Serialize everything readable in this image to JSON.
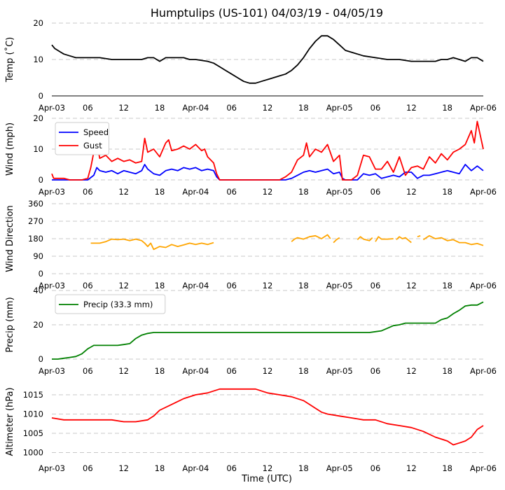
{
  "chart_data": {
    "title": "Humptulips (US-101) 04/03/19 - 04/05/19",
    "xlabel": "Time (UTC)",
    "x_range_hours": [
      0,
      72
    ],
    "x_ticks": [
      {
        "h": 0,
        "label": "Apr-03"
      },
      {
        "h": 6,
        "label": "06"
      },
      {
        "h": 12,
        "label": "12"
      },
      {
        "h": 18,
        "label": "18"
      },
      {
        "h": 24,
        "label": "Apr-04"
      },
      {
        "h": 30,
        "label": "06"
      },
      {
        "h": 36,
        "label": "12"
      },
      {
        "h": 42,
        "label": "18"
      },
      {
        "h": 48,
        "label": "Apr-05"
      },
      {
        "h": 54,
        "label": "06"
      },
      {
        "h": 60,
        "label": "12"
      },
      {
        "h": 66,
        "label": "18"
      },
      {
        "h": 72,
        "label": "Apr-06"
      }
    ],
    "panels": [
      {
        "id": "temp",
        "type": "line",
        "ylabel": "Temp ($^\\circ$C)",
        "ylabel_display": "Temp (˚C)",
        "ylim": [
          0,
          20
        ],
        "yticks": [
          0,
          10,
          20
        ],
        "grid": true,
        "show_axis_line": true,
        "series": [
          {
            "name": "Temp",
            "color": "#000000",
            "x": [
              0,
              0.5,
              1,
              1.5,
              2,
              3,
              4,
              6,
              8,
              10,
              11,
              12,
              14,
              15,
              16,
              17,
              18,
              19,
              20,
              21,
              22,
              23,
              24,
              26,
              27,
              28,
              29,
              30,
              31,
              32,
              33,
              34,
              35,
              36,
              37,
              38,
              39,
              40,
              41,
              42,
              43,
              44,
              45,
              46,
              47,
              48,
              49,
              50,
              51,
              52,
              54,
              56,
              58,
              60,
              62,
              64,
              65,
              66,
              67,
              68,
              69,
              70,
              71,
              72
            ],
            "y": [
              14,
              13,
              12.5,
              12,
              11.5,
              11,
              10.5,
              10.5,
              10.5,
              10,
              10,
              10,
              10,
              10,
              10.5,
              10.5,
              9.5,
              10.5,
              10.5,
              10.5,
              10.5,
              10,
              10,
              9.5,
              9,
              8,
              7,
              6,
              5,
              4,
              3.5,
              3.5,
              4,
              4.5,
              5,
              5.5,
              6,
              7,
              8.5,
              10.5,
              13,
              15,
              16.5,
              16.5,
              15.5,
              14,
              12.5,
              12,
              11.5,
              11,
              10.5,
              10,
              10,
              9.5,
              9.5,
              9.5,
              10,
              10,
              10.5,
              10,
              9.5,
              10.5,
              10.5,
              9.5
            ]
          }
        ]
      },
      {
        "id": "wind",
        "type": "line",
        "ylabel": "Wind (mph)",
        "ylim": [
          0,
          20
        ],
        "yticks": [
          0,
          10,
          20
        ],
        "grid": true,
        "legend": "top-left",
        "series": [
          {
            "name": "Speed",
            "color": "#0000ff",
            "x": [
              0,
              1,
              2,
              3,
              4,
              5,
              6,
              7,
              7.5,
              8,
              9,
              10,
              11,
              12,
              13,
              14,
              15,
              15.5,
              16,
              17,
              18,
              19,
              20,
              21,
              22,
              23,
              24,
              25,
              26,
              27,
              27.5,
              28,
              30,
              32,
              34,
              36,
              38,
              39,
              40,
              41,
              42,
              43,
              44,
              45,
              46,
              47,
              48,
              48.5,
              49,
              50,
              51,
              52,
              53,
              54,
              55,
              56,
              57,
              58,
              59,
              60,
              61,
              62,
              63,
              64,
              65,
              66,
              67,
              68,
              69,
              70,
              71,
              72
            ],
            "y": [
              0,
              0,
              0,
              0,
              0,
              0,
              0,
              1.5,
              4,
              3,
              2.5,
              3,
              2,
              3,
              2.5,
              2,
              3,
              5,
              3.5,
              2,
              1.5,
              3,
              3.5,
              3,
              4,
              3.5,
              4,
              3,
              3.5,
              3,
              1,
              0,
              0,
              0,
              0,
              0,
              0,
              0,
              0.5,
              1.5,
              2.5,
              3,
              2.5,
              3,
              3.5,
              2,
              2.5,
              0.5,
              0,
              0,
              0,
              2,
              1.5,
              2,
              0.5,
              1,
              1.5,
              1,
              2.5,
              2.5,
              0.5,
              1.5,
              1.5,
              2,
              2.5,
              3,
              2.5,
              2,
              5,
              3,
              4.5,
              3
            ]
          },
          {
            "name": "Gust",
            "color": "#ff0000",
            "x": [
              0,
              0.3,
              1,
              2,
              3,
              4,
              5,
              6,
              6.5,
              7,
              7.5,
              8,
              9,
              10,
              11,
              12,
              13,
              14,
              15,
              15.5,
              16,
              17,
              18,
              19,
              19.5,
              20,
              21,
              22,
              23,
              24,
              25,
              25.5,
              26,
              27,
              27.5,
              28,
              30,
              32,
              34,
              36,
              38,
              39,
              40,
              41,
              42,
              42.5,
              43,
              44,
              45,
              46,
              47,
              48,
              48.5,
              49,
              50,
              51,
              52,
              53,
              54,
              55,
              56,
              57,
              58,
              59,
              60,
              61,
              62,
              63,
              64,
              65,
              66,
              67,
              68,
              69,
              70,
              70.5,
              71,
              72
            ],
            "y": [
              2,
              0.5,
              0.5,
              0.5,
              0,
              0,
              0,
              0.5,
              4,
              9,
              12,
              7,
              8,
              6,
              7,
              6,
              6.5,
              5.5,
              6,
              13.5,
              9,
              10,
              7.5,
              12,
              13,
              9.5,
              10,
              11,
              10,
              11.5,
              9.5,
              10,
              7.5,
              5.5,
              2,
              0,
              0,
              0,
              0,
              0,
              0,
              1,
              2.5,
              6.5,
              8,
              12,
              7.5,
              10,
              9,
              11.5,
              6,
              8,
              0,
              0,
              0,
              1.5,
              8,
              7.5,
              3.5,
              3.5,
              6,
              2.5,
              7.5,
              1.5,
              4,
              4.5,
              3.5,
              7.5,
              5.5,
              8.5,
              6.5,
              9,
              10,
              11.5,
              16,
              12,
              19,
              10
            ]
          }
        ]
      },
      {
        "id": "wdir",
        "type": "line",
        "ylabel": "Wind Direction",
        "ylim": [
          0,
          360
        ],
        "yticks": [
          0,
          90,
          180,
          270,
          360
        ],
        "grid": true,
        "series": [
          {
            "name": "Direction",
            "color": "#ffa500",
            "segments": [
              {
                "x": [
                  6.5,
                  8,
                  9,
                  10,
                  11,
                  12,
                  13,
                  14,
                  15,
                  15.5,
                  16,
                  16.5,
                  17,
                  18,
                  19,
                  20,
                  21,
                  22,
                  23,
                  24,
                  25,
                  26,
                  27
                ],
                "y": [
                  157,
                  157,
                  165,
                  178,
                  175,
                  178,
                  170,
                  178,
                  170,
                  157,
                  140,
                  157,
                  125,
                  140,
                  135,
                  150,
                  140,
                  148,
                  157,
                  150,
                  157,
                  150,
                  160
                ]
              },
              {
                "x": [
                  40,
                  40.5,
                  41,
                  42,
                  43,
                  44,
                  45,
                  46,
                  46.5
                ],
                "y": [
                  165,
                  178,
                  185,
                  178,
                  190,
                  195,
                  180,
                  200,
                  180
                ]
              },
              {
                "x": [
                  47,
                  47.5,
                  48
                ],
                "y": [
                  160,
                  175,
                  185
                ]
              },
              {
                "x": [
                  51,
                  51.5,
                  52,
                  53,
                  53.5
                ],
                "y": [
                  175,
                  190,
                  178,
                  170,
                  185
                ]
              },
              {
                "x": [
                  54,
                  54.5,
                  55,
                  56,
                  57
                ],
                "y": [
                  165,
                  190,
                  178,
                  178,
                  180
                ]
              },
              {
                "x": [
                  57.5,
                  58,
                  58.5,
                  59,
                  60
                ],
                "y": [
                  175,
                  190,
                  180,
                  185,
                  160
                ]
              },
              {
                "x": [
                  61,
                  61.5
                ],
                "y": [
                  190,
                  195
                ]
              },
              {
                "x": [
                  62,
                  63,
                  64,
                  65,
                  66,
                  67,
                  68,
                  69,
                  70,
                  71,
                  72
                ],
                "y": [
                  175,
                  195,
                  180,
                  185,
                  170,
                  175,
                  160,
                  160,
                  150,
                  155,
                  145
                ]
              }
            ]
          }
        ]
      },
      {
        "id": "precip",
        "type": "line",
        "ylabel": "Precip (mm)",
        "ylim": [
          0,
          40
        ],
        "yticks": [
          0,
          20,
          40
        ],
        "grid": true,
        "legend": "top-left",
        "series": [
          {
            "name": "Precip (33.3 mm)",
            "color": "#008000",
            "x": [
              0,
              1,
              2,
              3,
              4,
              5,
              6,
              6.5,
              7,
              8,
              9,
              10,
              11,
              12,
              13,
              14,
              15,
              16,
              17,
              18,
              20,
              24,
              30,
              36,
              42,
              48,
              52,
              53,
              54,
              55,
              56,
              57,
              58,
              59,
              60,
              62,
              64,
              65,
              66,
              67,
              68,
              69,
              70,
              71,
              72
            ],
            "y": [
              0,
              0,
              0.5,
              1,
              1.5,
              3,
              6,
              7,
              8,
              8,
              8,
              8,
              8,
              8.5,
              9,
              12,
              14,
              15,
              15.5,
              15.5,
              15.5,
              15.5,
              15.5,
              15.5,
              15.5,
              15.5,
              15.5,
              15.5,
              16,
              16.5,
              18,
              19.5,
              20,
              21,
              21,
              21,
              21,
              23,
              24,
              26.5,
              28.5,
              31,
              31.5,
              31.5,
              33.3
            ]
          }
        ]
      },
      {
        "id": "altimeter",
        "type": "line",
        "ylabel": "Altimeter (hPa)",
        "ylim": [
          999,
          1017
        ],
        "yticks": [
          1000,
          1005,
          1010,
          1015
        ],
        "grid": true,
        "series": [
          {
            "name": "Altimeter",
            "color": "#ff0000",
            "x": [
              0,
              2,
              4,
              6,
              8,
              10,
              12,
              14,
              16,
              17,
              18,
              20,
              22,
              24,
              26,
              28,
              30,
              32,
              34,
              36,
              38,
              40,
              42,
              43,
              44,
              45,
              46,
              48,
              50,
              52,
              54,
              56,
              58,
              60,
              62,
              64,
              66,
              67,
              68,
              69,
              70,
              71,
              72
            ],
            "y": [
              1009,
              1008.5,
              1008.5,
              1008.5,
              1008.5,
              1008.5,
              1008,
              1008,
              1008.5,
              1009.5,
              1011,
              1012.5,
              1014,
              1015,
              1015.5,
              1016.5,
              1016.5,
              1016.5,
              1016.5,
              1015.5,
              1015,
              1014.5,
              1013.5,
              1012.5,
              1011.5,
              1010.5,
              1010,
              1009.5,
              1009,
              1008.5,
              1008.5,
              1007.5,
              1007,
              1006.5,
              1005.5,
              1004,
              1003,
              1002,
              1002.5,
              1003,
              1004,
              1006,
              1007
            ]
          }
        ]
      }
    ]
  }
}
